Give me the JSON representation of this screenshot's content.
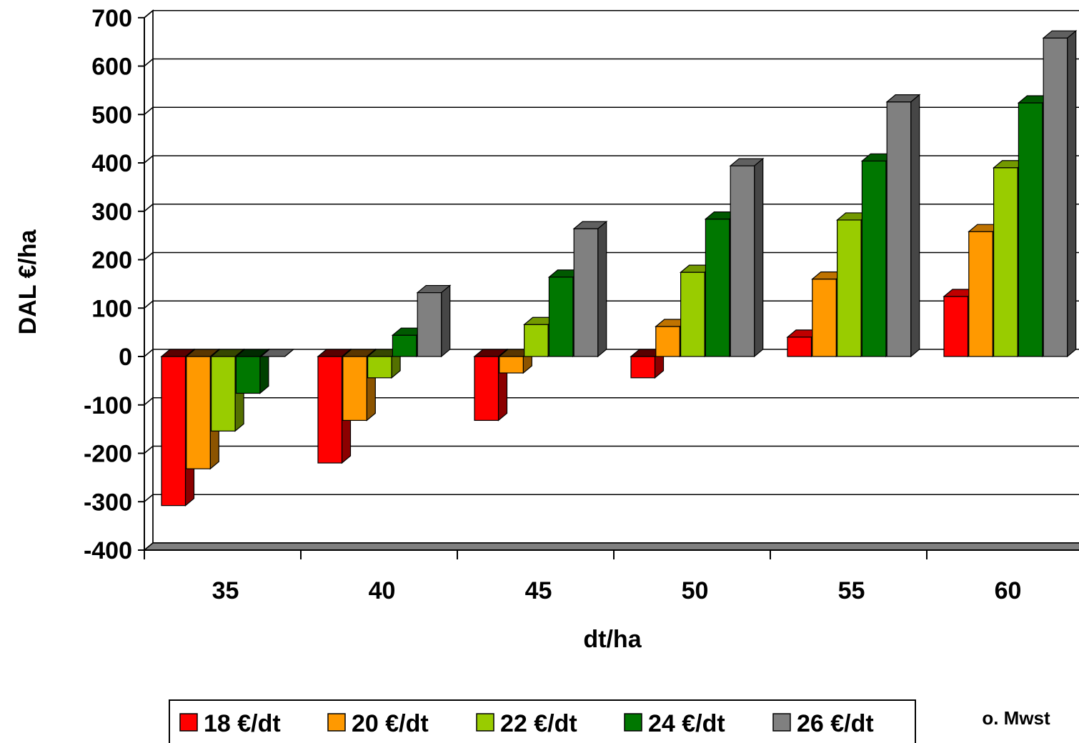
{
  "chart_data": {
    "type": "bar",
    "variant": "3d-clustered-column",
    "categories": [
      "35",
      "40",
      "45",
      "50",
      "55",
      "60"
    ],
    "series": [
      {
        "name": "18 €/dt",
        "color": "#ff0000",
        "values": [
          -308,
          -220,
          -132,
          -44,
          40,
          124
        ]
      },
      {
        "name": "20 €/dt",
        "color": "#ff9900",
        "values": [
          -232,
          -132,
          -34,
          62,
          160,
          258
        ]
      },
      {
        "name": "22 €/dt",
        "color": "#99cc00",
        "values": [
          -154,
          -44,
          66,
          174,
          282,
          390
        ]
      },
      {
        "name": "24 €/dt",
        "color": "#007700",
        "values": [
          -76,
          44,
          164,
          284,
          404,
          524
        ]
      },
      {
        "name": "26 €/dt",
        "color": "#808080",
        "values": [
          0,
          132,
          264,
          394,
          526,
          658
        ]
      }
    ],
    "xlabel": "dt/ha",
    "ylabel": "DAL €/ha",
    "ylim": [
      -400,
      700
    ],
    "yticks": [
      700,
      600,
      500,
      400,
      300,
      200,
      100,
      0,
      -100,
      -200,
      -300,
      -400
    ],
    "ytick_labels": [
      "700",
      "600",
      "500",
      "400",
      "300",
      "200",
      "100",
      "0",
      "-100",
      "-200",
      "-300",
      "-400"
    ],
    "grid": true,
    "legend_position": "bottom",
    "note": "o. Mwst"
  }
}
